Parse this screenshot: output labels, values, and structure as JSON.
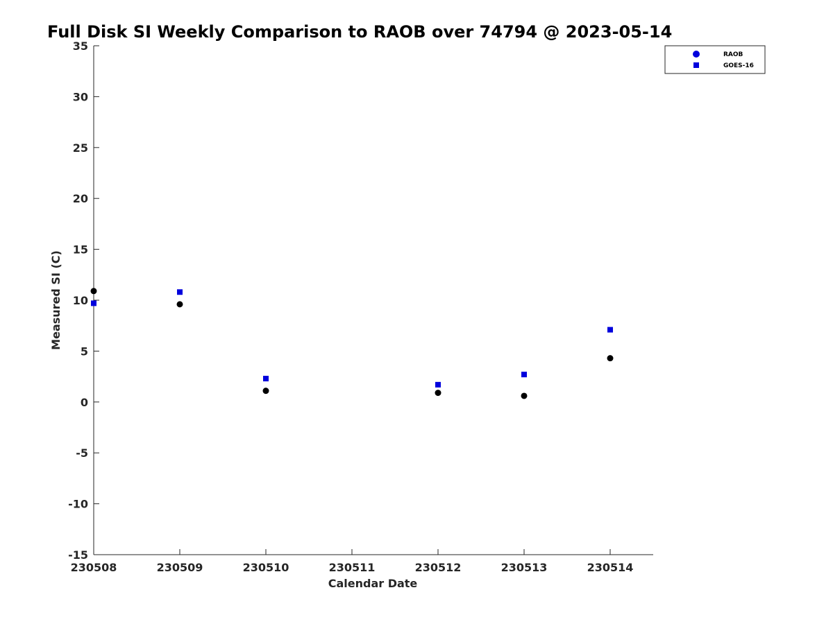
{
  "chart_data": {
    "type": "scatter",
    "title": "Full Disk SI Weekly Comparison to RAOB over 74794 @ 2023-05-14",
    "xlabel": "Calendar Date",
    "ylabel": "Measured SI (C)",
    "x_ticks": [
      "230508",
      "230509",
      "230510",
      "230511",
      "230512",
      "230513",
      "230514"
    ],
    "xlim": [
      "230508",
      "230514.5"
    ],
    "ylim": [
      -15,
      35
    ],
    "y_ticks": [
      "-15",
      "-10",
      "-5",
      "0",
      "5",
      "10",
      "15",
      "20",
      "25",
      "30",
      "35"
    ],
    "grid": false,
    "legend_position": "top-right",
    "series": [
      {
        "name": "RAOB",
        "marker": "circle",
        "color": "#000000",
        "legend_color": "#0000dd",
        "points": [
          {
            "x": "230508",
            "y": 10.9
          },
          {
            "x": "230509",
            "y": 9.6
          },
          {
            "x": "230510",
            "y": 1.1
          },
          {
            "x": "230512",
            "y": 0.9
          },
          {
            "x": "230513",
            "y": 0.6
          },
          {
            "x": "230514",
            "y": 4.3
          }
        ]
      },
      {
        "name": "GOES-16",
        "marker": "square",
        "color": "#0000dd",
        "legend_color": "#0000dd",
        "points": [
          {
            "x": "230508",
            "y": 9.7
          },
          {
            "x": "230509",
            "y": 10.8
          },
          {
            "x": "230510",
            "y": 2.3
          },
          {
            "x": "230512",
            "y": 1.7
          },
          {
            "x": "230513",
            "y": 2.7
          },
          {
            "x": "230514",
            "y": 7.1
          }
        ]
      }
    ]
  }
}
